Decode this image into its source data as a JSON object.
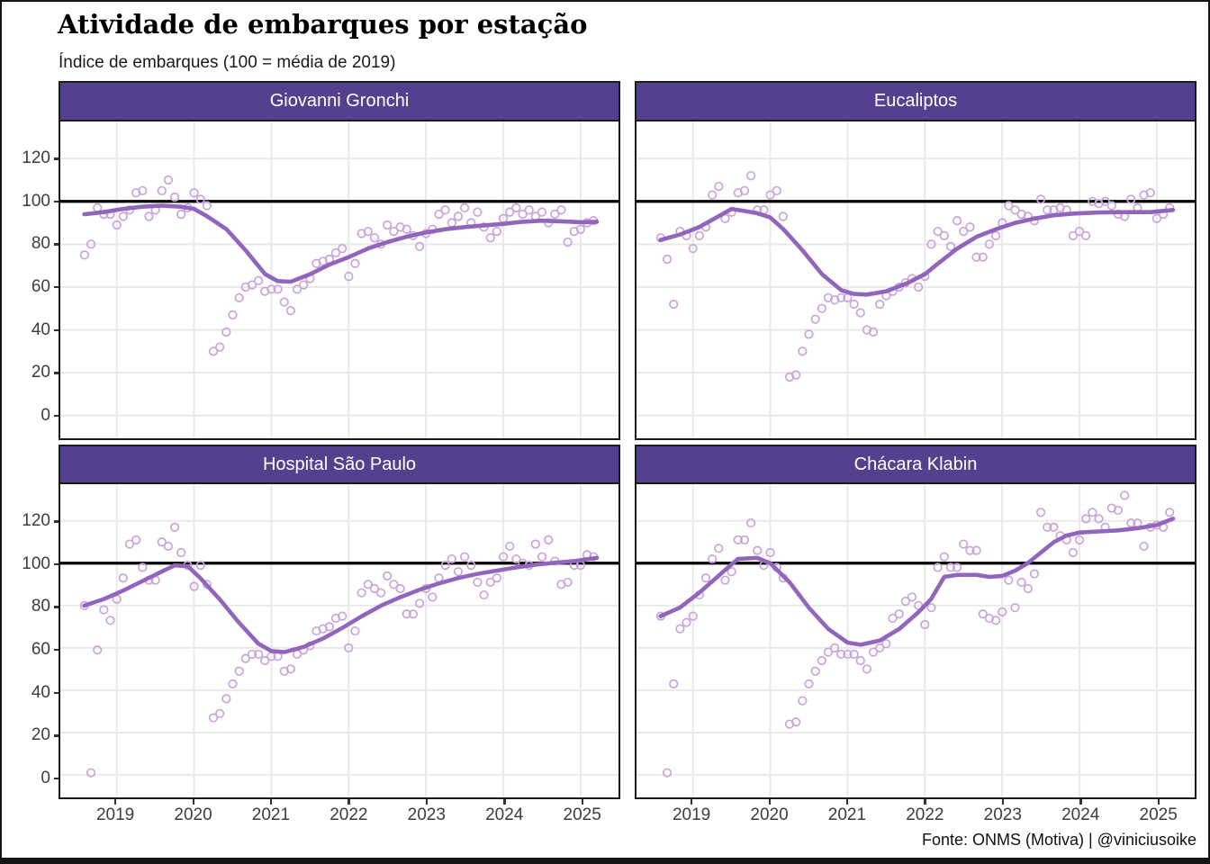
{
  "header": {
    "title": "Atividade de embarques por estação",
    "subtitle": "Índice de embarques (100 = média de 2019)"
  },
  "footer": {
    "source": "Fonte: ONMS (Motiva) | @viniciusoike"
  },
  "colors": {
    "accent_header": "#54408E",
    "trend": "#9065BB",
    "points": "#C9A5DA",
    "reference_line": "#000000",
    "grid": "#E9E9E9"
  },
  "chart_data": {
    "type": "scatter",
    "title": "Atividade de embarques por estação",
    "subtitle": "Índice de embarques (100 = média de 2019)",
    "legend_position": "none",
    "grid": "on",
    "x_ticks": [
      2019,
      2020,
      2021,
      2022,
      2023,
      2024,
      2025
    ],
    "y_ticks": [
      0,
      20,
      40,
      60,
      80,
      100,
      120
    ],
    "x_domain": [
      2018.27,
      2025.49
    ],
    "y_domain": [
      -10.6,
      137.3
    ],
    "reference_value": 100,
    "points_start": "2018-08",
    "points_frequency": "monthly",
    "facets": [
      {
        "label": "Giovanni Gronchi",
        "points": [
          75,
          80,
          97,
          94,
          94,
          89,
          93,
          96,
          104,
          105,
          93,
          96,
          105,
          110,
          102,
          94,
          97,
          104,
          101,
          98,
          30,
          32,
          39,
          47,
          55,
          60,
          61,
          63,
          58,
          59,
          59,
          53,
          49,
          59,
          61,
          64,
          71,
          72,
          73,
          76,
          78,
          65,
          71,
          85,
          86,
          83,
          80,
          89,
          86,
          88,
          87,
          84,
          79,
          85,
          87,
          94,
          96,
          90,
          93,
          97,
          90,
          95,
          88,
          83,
          86,
          92,
          95,
          97,
          94,
          96,
          93,
          95,
          90,
          94,
          96,
          81,
          86,
          87,
          90,
          91
        ],
        "trend": [
          [
            2018.58,
            94
          ],
          [
            2018.83,
            95
          ],
          [
            2019.08,
            96.5
          ],
          [
            2019.33,
            97.5
          ],
          [
            2019.58,
            98
          ],
          [
            2019.83,
            97.5
          ],
          [
            2020.0,
            96.5
          ],
          [
            2020.17,
            93
          ],
          [
            2020.42,
            87
          ],
          [
            2020.67,
            77
          ],
          [
            2020.92,
            66
          ],
          [
            2021.08,
            62.8
          ],
          [
            2021.25,
            62.5
          ],
          [
            2021.5,
            66
          ],
          [
            2021.75,
            70.5
          ],
          [
            2022.0,
            74
          ],
          [
            2022.25,
            78
          ],
          [
            2022.5,
            81
          ],
          [
            2022.75,
            83.5
          ],
          [
            2023.0,
            85.5
          ],
          [
            2023.25,
            87
          ],
          [
            2023.5,
            88
          ],
          [
            2023.75,
            88.8
          ],
          [
            2024.0,
            89.5
          ],
          [
            2024.25,
            90.5
          ],
          [
            2024.5,
            91
          ],
          [
            2024.75,
            90.7
          ],
          [
            2025.0,
            90.3
          ],
          [
            2025.21,
            90.5
          ]
        ]
      },
      {
        "label": "Eucaliptos",
        "points": [
          83,
          73,
          52,
          86,
          84,
          78,
          84,
          88,
          103,
          107,
          92,
          95,
          104,
          105,
          112,
          96,
          96,
          103,
          105,
          93,
          18,
          19,
          30,
          38,
          45,
          50,
          55,
          54,
          55,
          55,
          52,
          48,
          40,
          39,
          52,
          56,
          58,
          60,
          62,
          64,
          60,
          65,
          80,
          86,
          84,
          79,
          91,
          86,
          88,
          74,
          74,
          80,
          84,
          90,
          98,
          96,
          94,
          93,
          91,
          101,
          96,
          96,
          97,
          96,
          84,
          86,
          84,
          100,
          99,
          100,
          98,
          94,
          93,
          101,
          97,
          103,
          104,
          92,
          94,
          97
        ],
        "trend": [
          [
            2018.58,
            82
          ],
          [
            2018.83,
            84.5
          ],
          [
            2019.08,
            88
          ],
          [
            2019.33,
            93
          ],
          [
            2019.5,
            96.5
          ],
          [
            2019.67,
            95.5
          ],
          [
            2019.83,
            94.5
          ],
          [
            2020.0,
            92.5
          ],
          [
            2020.17,
            87
          ],
          [
            2020.42,
            77
          ],
          [
            2020.67,
            66
          ],
          [
            2020.92,
            58.5
          ],
          [
            2021.08,
            56.8
          ],
          [
            2021.25,
            56.5
          ],
          [
            2021.5,
            58
          ],
          [
            2021.75,
            61.5
          ],
          [
            2022.0,
            66
          ],
          [
            2022.17,
            71
          ],
          [
            2022.42,
            78
          ],
          [
            2022.67,
            83.5
          ],
          [
            2022.92,
            87
          ],
          [
            2023.17,
            90
          ],
          [
            2023.42,
            92
          ],
          [
            2023.67,
            93.5
          ],
          [
            2023.92,
            94.3
          ],
          [
            2024.25,
            94.8
          ],
          [
            2024.58,
            95
          ],
          [
            2024.92,
            95
          ],
          [
            2025.21,
            96
          ]
        ]
      },
      {
        "label": "Hospital São Paulo",
        "points": [
          80,
          1,
          59,
          78,
          73,
          83,
          93,
          109,
          111,
          98,
          92,
          92,
          110,
          108,
          117,
          105,
          99,
          89,
          99,
          90,
          27,
          29,
          36,
          43,
          49,
          55,
          57,
          57,
          54,
          56,
          56,
          49,
          50,
          57,
          59,
          61,
          68,
          69,
          70,
          74,
          75,
          60,
          68,
          86,
          90,
          88,
          86,
          94,
          90,
          88,
          76,
          76,
          81,
          88,
          84,
          93,
          99,
          102,
          96,
          103,
          99,
          91,
          85,
          91,
          93,
          103,
          108,
          102,
          100,
          99,
          109,
          103,
          111,
          101,
          90,
          91,
          99,
          99,
          104,
          103
        ],
        "trend": [
          [
            2018.58,
            80
          ],
          [
            2018.83,
            83
          ],
          [
            2019.08,
            87
          ],
          [
            2019.33,
            91.5
          ],
          [
            2019.58,
            96
          ],
          [
            2019.75,
            99
          ],
          [
            2019.92,
            98.5
          ],
          [
            2020.08,
            93
          ],
          [
            2020.33,
            83
          ],
          [
            2020.58,
            72
          ],
          [
            2020.83,
            62
          ],
          [
            2021.0,
            58.5
          ],
          [
            2021.17,
            58
          ],
          [
            2021.42,
            60.5
          ],
          [
            2021.67,
            64.5
          ],
          [
            2021.92,
            69.5
          ],
          [
            2022.17,
            75
          ],
          [
            2022.42,
            80
          ],
          [
            2022.67,
            84
          ],
          [
            2022.92,
            87.5
          ],
          [
            2023.17,
            90.5
          ],
          [
            2023.42,
            93
          ],
          [
            2023.67,
            95
          ],
          [
            2023.92,
            96.5
          ],
          [
            2024.17,
            98
          ],
          [
            2024.42,
            99.3
          ],
          [
            2024.67,
            100.2
          ],
          [
            2024.92,
            101
          ],
          [
            2025.21,
            102.5
          ]
        ]
      },
      {
        "label": "Chácara Klabin",
        "points": [
          75,
          1,
          43,
          69,
          72,
          75,
          85,
          93,
          102,
          107,
          92,
          96,
          111,
          111,
          119,
          106,
          99,
          105,
          98,
          93,
          24,
          25,
          35,
          43,
          49,
          54,
          58,
          60,
          57,
          57,
          57,
          54,
          50,
          58,
          60,
          62,
          74,
          76,
          82,
          84,
          80,
          71,
          79,
          98,
          103,
          98,
          98,
          109,
          106,
          106,
          76,
          74,
          73,
          77,
          92,
          79,
          91,
          88,
          95,
          124,
          117,
          117,
          113,
          111,
          105,
          111,
          121,
          124,
          121,
          117,
          126,
          125,
          132,
          119,
          119,
          108,
          117,
          118,
          117,
          124
        ],
        "trend": [
          [
            2018.58,
            75
          ],
          [
            2018.83,
            79
          ],
          [
            2019.08,
            86
          ],
          [
            2019.33,
            94
          ],
          [
            2019.58,
            102
          ],
          [
            2019.83,
            102.5
          ],
          [
            2020.0,
            100
          ],
          [
            2020.25,
            91
          ],
          [
            2020.5,
            79
          ],
          [
            2020.75,
            69
          ],
          [
            2021.0,
            62.5
          ],
          [
            2021.17,
            61.5
          ],
          [
            2021.42,
            63.5
          ],
          [
            2021.67,
            69
          ],
          [
            2021.92,
            77
          ],
          [
            2022.08,
            83
          ],
          [
            2022.25,
            93.5
          ],
          [
            2022.42,
            94.5
          ],
          [
            2022.67,
            94.5
          ],
          [
            2022.83,
            93.5
          ],
          [
            2023.0,
            94
          ],
          [
            2023.17,
            96.5
          ],
          [
            2023.33,
            100
          ],
          [
            2023.5,
            105
          ],
          [
            2023.67,
            110
          ],
          [
            2023.83,
            113
          ],
          [
            2024.0,
            114.5
          ],
          [
            2024.25,
            115
          ],
          [
            2024.5,
            115.5
          ],
          [
            2024.75,
            116.5
          ],
          [
            2025.0,
            118
          ],
          [
            2025.21,
            121
          ]
        ]
      }
    ]
  }
}
